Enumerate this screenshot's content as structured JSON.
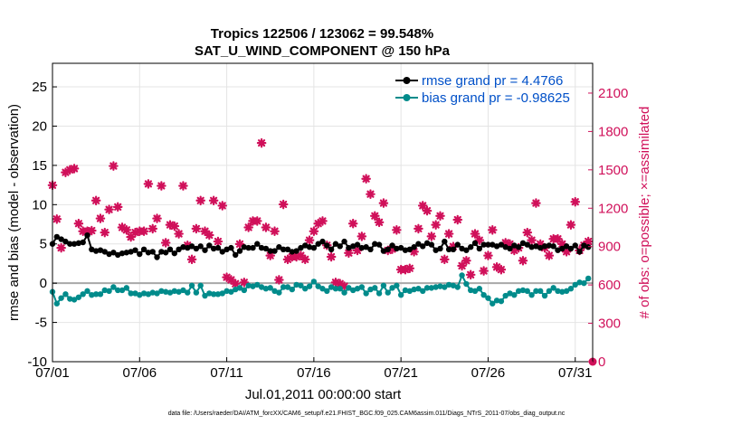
{
  "chart_data": {
    "type": "line",
    "title": "Tropics 122506 / 123062 = 99.548%",
    "subtitle": "SAT_U_WIND_COMPONENT @ 150 hPa",
    "xlabel": "Jul.01,2011 00:00:00 start",
    "ylabel": "rmse and bias (model - observation)",
    "ylabel_right": "# of obs: o=possible; ×=assimilated",
    "footnote": "data file: /Users/raeder/DAI/ATM_forcXX/CAM6_setup/f.e21.FHIST_BGC.f09_025.CAM6assim.011/Diags_NTrS_2011-07/obs_diag_output.nc",
    "x_tick_labels": [
      "07/01",
      "07/06",
      "07/11",
      "07/16",
      "07/21",
      "07/26",
      "07/31"
    ],
    "x_tick_days": [
      1,
      6,
      11,
      16,
      21,
      26,
      31
    ],
    "xlim": [
      1,
      32
    ],
    "ylim": [
      -10,
      28
    ],
    "y_ticks": [
      -10,
      -5,
      0,
      5,
      10,
      15,
      20,
      25
    ],
    "ylim_right": [
      0,
      2333
    ],
    "y_ticks_right": [
      0,
      300,
      600,
      900,
      1200,
      1500,
      1800,
      2100
    ],
    "grid": true,
    "legend_position": "top-right",
    "colors": {
      "rmse": "#000000",
      "bias": "#008b8b",
      "obs": "#d0105a",
      "zero_line": "#a8a8a8",
      "legend_text": "#0050c8"
    },
    "series": [
      {
        "name": "rmse grand pr = 4.4766",
        "x": [
          1.0,
          1.25,
          1.5,
          1.75,
          2.0,
          2.25,
          2.5,
          2.75,
          3.0,
          3.25,
          3.5,
          3.75,
          4.0,
          4.25,
          4.5,
          4.75,
          5.0,
          5.25,
          5.5,
          5.75,
          6.0,
          6.25,
          6.5,
          6.75,
          7.0,
          7.25,
          7.5,
          7.75,
          8.0,
          8.25,
          8.5,
          8.75,
          9.0,
          9.25,
          9.5,
          9.75,
          10.0,
          10.25,
          10.5,
          10.75,
          11.0,
          11.25,
          11.5,
          11.75,
          12.0,
          12.25,
          12.5,
          12.75,
          13.0,
          13.25,
          13.5,
          13.75,
          14.0,
          14.25,
          14.5,
          14.75,
          15.0,
          15.25,
          15.5,
          15.75,
          16.0,
          16.25,
          16.5,
          16.75,
          17.0,
          17.25,
          17.5,
          17.75,
          18.0,
          18.25,
          18.5,
          18.75,
          19.0,
          19.25,
          19.5,
          19.75,
          20.0,
          20.25,
          20.5,
          20.75,
          21.0,
          21.25,
          21.5,
          21.75,
          22.0,
          22.25,
          22.5,
          22.75,
          23.0,
          23.25,
          23.5,
          23.75,
          24.0,
          24.25,
          24.5,
          24.75,
          25.0,
          25.25,
          25.5,
          25.75,
          26.0,
          26.25,
          26.5,
          26.75,
          27.0,
          27.25,
          27.5,
          27.75,
          28.0,
          28.25,
          28.5,
          28.75,
          29.0,
          29.25,
          29.5,
          29.75,
          30.0,
          30.25,
          30.5,
          30.75,
          31.0,
          31.25,
          31.5,
          31.75
        ],
        "values": [
          5.0,
          5.9,
          5.6,
          5.3,
          5.0,
          5.0,
          5.1,
          5.2,
          6.1,
          4.3,
          4.1,
          4.2,
          4.0,
          3.7,
          3.9,
          3.6,
          3.8,
          3.9,
          4.0,
          4.2,
          3.7,
          4.3,
          3.9,
          4.0,
          3.3,
          4.0,
          3.9,
          4.3,
          3.8,
          4.3,
          4.6,
          4.5,
          4.7,
          4.4,
          4.7,
          4.2,
          4.8,
          4.4,
          4.5,
          4.0,
          4.3,
          4.5,
          3.6,
          4.1,
          4.6,
          4.5,
          4.5,
          5.0,
          4.5,
          4.4,
          4.1,
          4.1,
          4.6,
          4.3,
          4.3,
          4.0,
          4.1,
          4.5,
          4.8,
          4.6,
          4.5,
          5.0,
          5.3,
          4.8,
          4.3,
          5.0,
          4.7,
          5.3,
          4.5,
          4.7,
          4.9,
          4.5,
          4.6,
          4.3,
          5.0,
          4.9,
          4.1,
          4.3,
          4.8,
          4.4,
          4.5,
          4.2,
          4.3,
          4.6,
          5.0,
          4.7,
          5.1,
          4.9,
          4.2,
          4.4,
          5.3,
          4.3,
          4.3,
          4.9,
          4.4,
          4.2,
          4.6,
          5.1,
          4.4,
          4.9,
          4.9,
          4.9,
          4.7,
          4.9,
          4.6,
          4.4,
          4.8,
          4.6,
          5.1,
          4.9,
          4.6,
          4.7,
          4.5,
          4.7,
          4.8,
          4.7,
          4.2,
          4.4,
          4.7,
          4.4,
          4.8,
          4.0,
          4.8,
          4.6
        ]
      },
      {
        "name": "bias grand pr = -0.98625",
        "x": [
          1.0,
          1.25,
          1.5,
          1.75,
          2.0,
          2.25,
          2.5,
          2.75,
          3.0,
          3.25,
          3.5,
          3.75,
          4.0,
          4.25,
          4.5,
          4.75,
          5.0,
          5.25,
          5.5,
          5.75,
          6.0,
          6.25,
          6.5,
          6.75,
          7.0,
          7.25,
          7.5,
          7.75,
          8.0,
          8.25,
          8.5,
          8.75,
          9.0,
          9.25,
          9.5,
          9.75,
          10.0,
          10.25,
          10.5,
          10.75,
          11.0,
          11.25,
          11.5,
          11.75,
          12.0,
          12.25,
          12.5,
          12.75,
          13.0,
          13.25,
          13.5,
          13.75,
          14.0,
          14.25,
          14.5,
          14.75,
          15.0,
          15.25,
          15.5,
          15.75,
          16.0,
          16.25,
          16.5,
          16.75,
          17.0,
          17.25,
          17.5,
          17.75,
          18.0,
          18.25,
          18.5,
          18.75,
          19.0,
          19.25,
          19.5,
          19.75,
          20.0,
          20.25,
          20.5,
          20.75,
          21.0,
          21.25,
          21.5,
          21.75,
          22.0,
          22.25,
          22.5,
          22.75,
          23.0,
          23.25,
          23.5,
          23.75,
          24.0,
          24.25,
          24.5,
          24.75,
          25.0,
          25.25,
          25.5,
          25.75,
          26.0,
          26.25,
          26.5,
          26.75,
          27.0,
          27.25,
          27.5,
          27.75,
          28.0,
          28.25,
          28.5,
          28.75,
          29.0,
          29.25,
          29.5,
          29.75,
          30.0,
          30.25,
          30.5,
          30.75,
          31.0,
          31.25,
          31.5,
          31.75
        ],
        "values": [
          -1.1,
          -2.6,
          -1.9,
          -1.4,
          -2.0,
          -2.1,
          -1.8,
          -1.4,
          -1.0,
          -1.5,
          -1.4,
          -1.4,
          -0.9,
          -1.0,
          -0.5,
          -0.9,
          -0.9,
          -0.6,
          -1.3,
          -1.3,
          -1.5,
          -1.3,
          -1.4,
          -1.2,
          -1.3,
          -1.0,
          -1.1,
          -1.2,
          -1.0,
          -1.1,
          -0.9,
          -1.2,
          -0.3,
          -1.2,
          -0.3,
          -1.6,
          -1.3,
          -1.4,
          -1.4,
          -1.3,
          -1.0,
          -1.1,
          -0.8,
          -0.6,
          -0.9,
          -0.3,
          -0.4,
          -0.2,
          -0.5,
          -0.7,
          -0.6,
          -1.0,
          -1.2,
          -0.5,
          -0.5,
          -0.8,
          -0.2,
          -0.3,
          -0.7,
          -0.4,
          0.2,
          -0.4,
          -0.7,
          -1.0,
          -0.5,
          -0.7,
          -0.7,
          -1.2,
          -0.6,
          -0.9,
          -0.7,
          -0.5,
          -1.3,
          -0.8,
          -0.6,
          -1.3,
          -0.3,
          -1.2,
          -0.6,
          -0.3,
          -1.5,
          -0.9,
          -1.0,
          -0.8,
          -0.7,
          -1.0,
          -0.6,
          -0.6,
          -0.5,
          -0.4,
          -0.5,
          -0.2,
          -0.3,
          -0.5,
          1.0,
          -0.1,
          -0.9,
          -1.0,
          -0.7,
          -1.5,
          -1.9,
          -2.6,
          -2.2,
          -2.3,
          -1.6,
          -1.3,
          -1.5,
          -1.0,
          -0.9,
          -1.0,
          -1.5,
          -1.0,
          -1.0,
          -1.6,
          -1.0,
          -0.6,
          -1.0,
          -1.1,
          -1.0,
          -0.7,
          -0.2,
          0.1,
          0.0,
          0.6
        ]
      }
    ],
    "obs_series": {
      "name": "# of obs assimilated",
      "x": [
        1.0,
        1.25,
        1.5,
        1.75,
        2.0,
        2.25,
        2.5,
        2.75,
        3.0,
        3.25,
        3.5,
        3.75,
        4.0,
        4.25,
        4.5,
        4.75,
        5.0,
        5.25,
        5.5,
        5.75,
        6.0,
        6.25,
        6.5,
        6.75,
        7.0,
        7.25,
        7.5,
        7.75,
        8.0,
        8.25,
        8.5,
        8.75,
        9.0,
        9.25,
        9.5,
        9.75,
        10.0,
        10.25,
        10.5,
        10.75,
        11.0,
        11.25,
        11.5,
        11.75,
        12.0,
        12.25,
        12.5,
        12.75,
        13.0,
        13.25,
        13.5,
        13.75,
        14.0,
        14.25,
        14.5,
        14.75,
        15.0,
        15.25,
        15.5,
        15.75,
        16.0,
        16.25,
        16.5,
        16.75,
        17.0,
        17.25,
        17.5,
        17.75,
        18.0,
        18.25,
        18.5,
        18.75,
        19.0,
        19.25,
        19.5,
        19.75,
        20.0,
        20.25,
        20.5,
        20.75,
        21.0,
        21.25,
        21.5,
        21.75,
        22.0,
        22.25,
        22.5,
        22.75,
        23.0,
        23.25,
        23.5,
        23.75,
        24.0,
        24.25,
        24.5,
        24.75,
        25.0,
        25.25,
        25.5,
        25.75,
        26.0,
        26.25,
        26.5,
        26.75,
        27.0,
        27.25,
        27.5,
        27.75,
        28.0,
        28.25,
        28.5,
        28.75,
        29.0,
        29.25,
        29.5,
        29.75,
        30.0,
        30.25,
        30.5,
        30.75,
        31.0,
        31.25,
        31.5,
        31.75
      ],
      "values": [
        1380,
        1115,
        890,
        1480,
        1500,
        1510,
        1080,
        1020,
        1020,
        1025,
        1260,
        1120,
        1010,
        1190,
        1530,
        1210,
        1050,
        1030,
        975,
        1010,
        1020,
        1020,
        1390,
        1040,
        1120,
        1375,
        930,
        1070,
        1060,
        1000,
        1375,
        910,
        800,
        1040,
        1260,
        1020,
        990,
        1260,
        940,
        1220,
        660,
        640,
        610,
        920,
        620,
        1050,
        1100,
        1100,
        1710,
        1050,
        830,
        1020,
        640,
        1230,
        800,
        820,
        820,
        830,
        800,
        950,
        1020,
        1080,
        1100,
        910,
        820,
        620,
        610,
        590,
        850,
        1080,
        870,
        980,
        1430,
        1310,
        1140,
        1090,
        1240,
        870,
        880,
        1030,
        720,
        720,
        730,
        860,
        1040,
        1220,
        1180,
        980,
        1070,
        1140,
        800,
        1000,
        900,
        1110,
        750,
        790,
        680,
        1000,
        950,
        710,
        830,
        1030,
        740,
        720,
        930,
        920,
        870,
        890,
        790,
        1010,
        950,
        1240,
        920,
        890,
        830,
        960,
        960,
        920,
        860,
        1070,
        1250,
        870,
        910,
        940
      ]
    },
    "obs_last_point": {
      "x": 32,
      "value": 0
    }
  }
}
